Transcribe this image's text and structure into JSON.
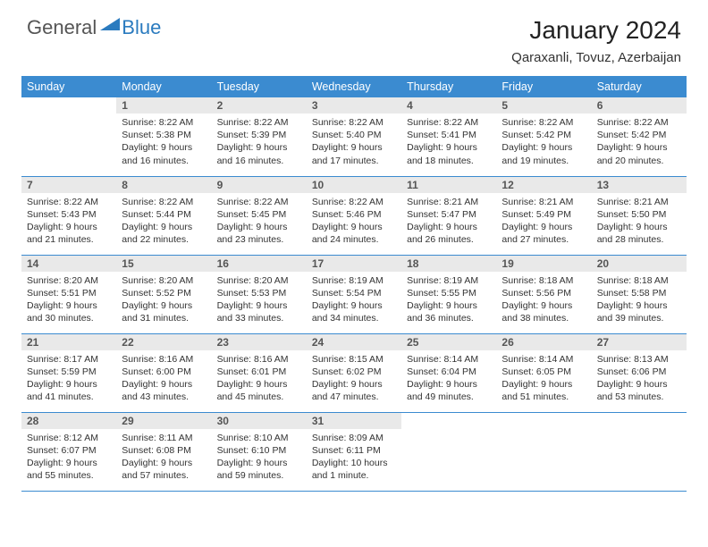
{
  "logo": {
    "general": "General",
    "blue": "Blue"
  },
  "title": "January 2024",
  "location": "Qaraxanli, Tovuz, Azerbaijan",
  "columns": [
    "Sunday",
    "Monday",
    "Tuesday",
    "Wednesday",
    "Thursday",
    "Friday",
    "Saturday"
  ],
  "colors": {
    "header_bg": "#3b8bd0",
    "header_text": "#ffffff",
    "daynum_bg": "#e9e9e9",
    "row_border": "#3b8bd0",
    "logo_blue": "#2b7bbf"
  },
  "weeks": [
    [
      {
        "day": "",
        "sunrise": "",
        "sunset": "",
        "daylight": ""
      },
      {
        "day": "1",
        "sunrise": "Sunrise: 8:22 AM",
        "sunset": "Sunset: 5:38 PM",
        "daylight": "Daylight: 9 hours and 16 minutes."
      },
      {
        "day": "2",
        "sunrise": "Sunrise: 8:22 AM",
        "sunset": "Sunset: 5:39 PM",
        "daylight": "Daylight: 9 hours and 16 minutes."
      },
      {
        "day": "3",
        "sunrise": "Sunrise: 8:22 AM",
        "sunset": "Sunset: 5:40 PM",
        "daylight": "Daylight: 9 hours and 17 minutes."
      },
      {
        "day": "4",
        "sunrise": "Sunrise: 8:22 AM",
        "sunset": "Sunset: 5:41 PM",
        "daylight": "Daylight: 9 hours and 18 minutes."
      },
      {
        "day": "5",
        "sunrise": "Sunrise: 8:22 AM",
        "sunset": "Sunset: 5:42 PM",
        "daylight": "Daylight: 9 hours and 19 minutes."
      },
      {
        "day": "6",
        "sunrise": "Sunrise: 8:22 AM",
        "sunset": "Sunset: 5:42 PM",
        "daylight": "Daylight: 9 hours and 20 minutes."
      }
    ],
    [
      {
        "day": "7",
        "sunrise": "Sunrise: 8:22 AM",
        "sunset": "Sunset: 5:43 PM",
        "daylight": "Daylight: 9 hours and 21 minutes."
      },
      {
        "day": "8",
        "sunrise": "Sunrise: 8:22 AM",
        "sunset": "Sunset: 5:44 PM",
        "daylight": "Daylight: 9 hours and 22 minutes."
      },
      {
        "day": "9",
        "sunrise": "Sunrise: 8:22 AM",
        "sunset": "Sunset: 5:45 PM",
        "daylight": "Daylight: 9 hours and 23 minutes."
      },
      {
        "day": "10",
        "sunrise": "Sunrise: 8:22 AM",
        "sunset": "Sunset: 5:46 PM",
        "daylight": "Daylight: 9 hours and 24 minutes."
      },
      {
        "day": "11",
        "sunrise": "Sunrise: 8:21 AM",
        "sunset": "Sunset: 5:47 PM",
        "daylight": "Daylight: 9 hours and 26 minutes."
      },
      {
        "day": "12",
        "sunrise": "Sunrise: 8:21 AM",
        "sunset": "Sunset: 5:49 PM",
        "daylight": "Daylight: 9 hours and 27 minutes."
      },
      {
        "day": "13",
        "sunrise": "Sunrise: 8:21 AM",
        "sunset": "Sunset: 5:50 PM",
        "daylight": "Daylight: 9 hours and 28 minutes."
      }
    ],
    [
      {
        "day": "14",
        "sunrise": "Sunrise: 8:20 AM",
        "sunset": "Sunset: 5:51 PM",
        "daylight": "Daylight: 9 hours and 30 minutes."
      },
      {
        "day": "15",
        "sunrise": "Sunrise: 8:20 AM",
        "sunset": "Sunset: 5:52 PM",
        "daylight": "Daylight: 9 hours and 31 minutes."
      },
      {
        "day": "16",
        "sunrise": "Sunrise: 8:20 AM",
        "sunset": "Sunset: 5:53 PM",
        "daylight": "Daylight: 9 hours and 33 minutes."
      },
      {
        "day": "17",
        "sunrise": "Sunrise: 8:19 AM",
        "sunset": "Sunset: 5:54 PM",
        "daylight": "Daylight: 9 hours and 34 minutes."
      },
      {
        "day": "18",
        "sunrise": "Sunrise: 8:19 AM",
        "sunset": "Sunset: 5:55 PM",
        "daylight": "Daylight: 9 hours and 36 minutes."
      },
      {
        "day": "19",
        "sunrise": "Sunrise: 8:18 AM",
        "sunset": "Sunset: 5:56 PM",
        "daylight": "Daylight: 9 hours and 38 minutes."
      },
      {
        "day": "20",
        "sunrise": "Sunrise: 8:18 AM",
        "sunset": "Sunset: 5:58 PM",
        "daylight": "Daylight: 9 hours and 39 minutes."
      }
    ],
    [
      {
        "day": "21",
        "sunrise": "Sunrise: 8:17 AM",
        "sunset": "Sunset: 5:59 PM",
        "daylight": "Daylight: 9 hours and 41 minutes."
      },
      {
        "day": "22",
        "sunrise": "Sunrise: 8:16 AM",
        "sunset": "Sunset: 6:00 PM",
        "daylight": "Daylight: 9 hours and 43 minutes."
      },
      {
        "day": "23",
        "sunrise": "Sunrise: 8:16 AM",
        "sunset": "Sunset: 6:01 PM",
        "daylight": "Daylight: 9 hours and 45 minutes."
      },
      {
        "day": "24",
        "sunrise": "Sunrise: 8:15 AM",
        "sunset": "Sunset: 6:02 PM",
        "daylight": "Daylight: 9 hours and 47 minutes."
      },
      {
        "day": "25",
        "sunrise": "Sunrise: 8:14 AM",
        "sunset": "Sunset: 6:04 PM",
        "daylight": "Daylight: 9 hours and 49 minutes."
      },
      {
        "day": "26",
        "sunrise": "Sunrise: 8:14 AM",
        "sunset": "Sunset: 6:05 PM",
        "daylight": "Daylight: 9 hours and 51 minutes."
      },
      {
        "day": "27",
        "sunrise": "Sunrise: 8:13 AM",
        "sunset": "Sunset: 6:06 PM",
        "daylight": "Daylight: 9 hours and 53 minutes."
      }
    ],
    [
      {
        "day": "28",
        "sunrise": "Sunrise: 8:12 AM",
        "sunset": "Sunset: 6:07 PM",
        "daylight": "Daylight: 9 hours and 55 minutes."
      },
      {
        "day": "29",
        "sunrise": "Sunrise: 8:11 AM",
        "sunset": "Sunset: 6:08 PM",
        "daylight": "Daylight: 9 hours and 57 minutes."
      },
      {
        "day": "30",
        "sunrise": "Sunrise: 8:10 AM",
        "sunset": "Sunset: 6:10 PM",
        "daylight": "Daylight: 9 hours and 59 minutes."
      },
      {
        "day": "31",
        "sunrise": "Sunrise: 8:09 AM",
        "sunset": "Sunset: 6:11 PM",
        "daylight": "Daylight: 10 hours and 1 minute."
      },
      {
        "day": "",
        "sunrise": "",
        "sunset": "",
        "daylight": ""
      },
      {
        "day": "",
        "sunrise": "",
        "sunset": "",
        "daylight": ""
      },
      {
        "day": "",
        "sunrise": "",
        "sunset": "",
        "daylight": ""
      }
    ]
  ]
}
